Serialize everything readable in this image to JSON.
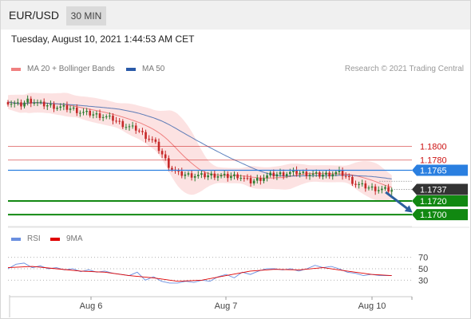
{
  "header": {
    "pair": "EUR/USD",
    "timeframe": "30 MIN"
  },
  "datetime": "Tuesday, August 10, 2021 1:44:53 AM CET",
  "legend_main": {
    "ma20_label": "MA 20 + Bollinger Bands",
    "ma50_label": "MA 50"
  },
  "legend_rsi": {
    "rsi_label": "RSI",
    "ma9_label": "9MA"
  },
  "credit": "Research © 2021 Trading Central",
  "colors": {
    "ma20": "#f08080",
    "ma50": "#2a5aa8",
    "rsi": "#6a8fe0",
    "ma9": "#e00000",
    "resistance": "#cc1111",
    "support": "#118811",
    "pivot": "#2a7fe0",
    "current": "#333333",
    "up": "#2e7d32",
    "down": "#c62828",
    "arrow": "#2c5f9e"
  },
  "chart_data": {
    "type": "candlestick",
    "ylim": [
      1.1685,
      1.19
    ],
    "x_ticks": [
      "Aug 6",
      "Aug 7",
      "Aug 10"
    ],
    "levels": [
      {
        "value": "1.1800",
        "kind": "resistance"
      },
      {
        "value": "1.1780",
        "kind": "resistance"
      },
      {
        "value": "1.1765",
        "kind": "pivot"
      },
      {
        "value": "1.1737",
        "kind": "current"
      },
      {
        "value": "1.1720",
        "kind": "support"
      },
      {
        "value": "1.1700",
        "kind": "support"
      }
    ],
    "price_path": [
      [
        0,
        1.1865
      ],
      [
        3,
        1.186
      ],
      [
        5,
        1.1868
      ],
      [
        8,
        1.1862
      ],
      [
        12,
        1.1858
      ],
      [
        16,
        1.1855
      ],
      [
        18,
        1.185
      ],
      [
        20,
        1.1848
      ],
      [
        23,
        1.1845
      ],
      [
        26,
        1.184
      ],
      [
        29,
        1.183
      ],
      [
        32,
        1.1825
      ],
      [
        34,
        1.1815
      ],
      [
        36,
        1.1808
      ],
      [
        38,
        1.179
      ],
      [
        40,
        1.177
      ],
      [
        42,
        1.176
      ],
      [
        45,
        1.1758
      ],
      [
        48,
        1.1757
      ],
      [
        51,
        1.1758
      ],
      [
        54,
        1.1756
      ],
      [
        57,
        1.1757
      ],
      [
        60,
        1.1748
      ],
      [
        62,
        1.1752
      ],
      [
        65,
        1.1758
      ],
      [
        68,
        1.176
      ],
      [
        71,
        1.1762
      ],
      [
        74,
        1.176
      ],
      [
        77,
        1.1758
      ],
      [
        80,
        1.176
      ],
      [
        82,
        1.1762
      ],
      [
        84,
        1.1755
      ],
      [
        86,
        1.1745
      ],
      [
        89,
        1.174
      ],
      [
        92,
        1.1737
      ],
      [
        95,
        1.1736
      ]
    ],
    "rsi": {
      "ylim": [
        15,
        85
      ],
      "levels": [
        70,
        50,
        30
      ],
      "path": [
        [
          0,
          50
        ],
        [
          2,
          58
        ],
        [
          4,
          60
        ],
        [
          6,
          52
        ],
        [
          8,
          55
        ],
        [
          10,
          50
        ],
        [
          12,
          52
        ],
        [
          14,
          48
        ],
        [
          16,
          50
        ],
        [
          18,
          45
        ],
        [
          20,
          48
        ],
        [
          22,
          44
        ],
        [
          24,
          46
        ],
        [
          26,
          42
        ],
        [
          28,
          40
        ],
        [
          30,
          38
        ],
        [
          32,
          44
        ],
        [
          34,
          30
        ],
        [
          36,
          36
        ],
        [
          38,
          28
        ],
        [
          40,
          25
        ],
        [
          42,
          25
        ],
        [
          44,
          28
        ],
        [
          46,
          26
        ],
        [
          48,
          30
        ],
        [
          50,
          28
        ],
        [
          52,
          36
        ],
        [
          54,
          40
        ],
        [
          56,
          34
        ],
        [
          58,
          44
        ],
        [
          60,
          40
        ],
        [
          62,
          46
        ],
        [
          64,
          50
        ],
        [
          66,
          50
        ],
        [
          68,
          48
        ],
        [
          70,
          50
        ],
        [
          72,
          46
        ],
        [
          74,
          50
        ],
        [
          76,
          56
        ],
        [
          78,
          52
        ],
        [
          80,
          54
        ],
        [
          82,
          50
        ],
        [
          84,
          44
        ],
        [
          86,
          42
        ],
        [
          88,
          38
        ],
        [
          90,
          40
        ],
        [
          92,
          38
        ],
        [
          95,
          38
        ]
      ],
      "ma9": [
        [
          0,
          52
        ],
        [
          6,
          54
        ],
        [
          12,
          50
        ],
        [
          18,
          46
        ],
        [
          24,
          44
        ],
        [
          30,
          38
        ],
        [
          36,
          34
        ],
        [
          42,
          28
        ],
        [
          48,
          30
        ],
        [
          54,
          38
        ],
        [
          60,
          46
        ],
        [
          66,
          49
        ],
        [
          72,
          48
        ],
        [
          78,
          52
        ],
        [
          84,
          46
        ],
        [
          90,
          40
        ],
        [
          95,
          38
        ]
      ]
    }
  }
}
